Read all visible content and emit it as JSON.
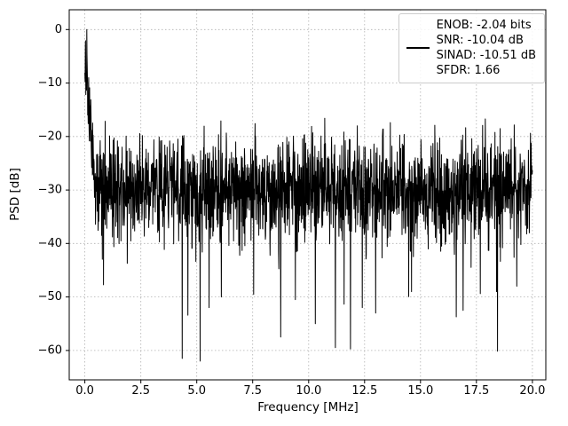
{
  "chart_data": {
    "type": "line",
    "title": "",
    "xlabel": "Frequency [MHz]",
    "ylabel": "PSD [dB]",
    "xlim": [
      -0.7,
      20.6
    ],
    "ylim": [
      -65.5,
      3.7
    ],
    "xticks": [
      0,
      2.5,
      5,
      7.5,
      10,
      12.5,
      15,
      17.5,
      20
    ],
    "xtick_labels": [
      "0.0",
      "2.5",
      "5.0",
      "7.5",
      "10.0",
      "12.5",
      "15.0",
      "17.5",
      "20.0"
    ],
    "yticks": [
      0,
      -10,
      -20,
      -30,
      -40,
      -50,
      -60
    ],
    "ytick_labels": [
      "0",
      "−10",
      "−20",
      "−30",
      "−40",
      "−50",
      "−60"
    ],
    "grid": true,
    "grid_color": "#b0b0b0",
    "line_color": "#000000",
    "legend": {
      "position": "upper right",
      "entries": [
        "ENOB: -2.04 bits",
        "SNR: -10.04 dB",
        "SINAD: -10.51 dB",
        "SFDR: 1.66"
      ]
    },
    "stats": {
      "enob_bits": -2.04,
      "snr_db": -10.04,
      "sinad_db": -10.51,
      "sfdr": 1.66
    },
    "series": [
      {
        "name": "psd",
        "color": "#000000",
        "x_range": [
          0,
          20
        ],
        "n_points": 1900,
        "seed": 11,
        "peak": {
          "x": 0.08,
          "y_db": 0
        },
        "main_lobe_width_mhz": 0.45,
        "noise_floor_db": -30,
        "noise_std_db": 5,
        "upper_env_db": -16.5,
        "deep_dip_prob": 0.006,
        "deep_dip_min_db": -62,
        "notches": [
          {
            "x": 4.35,
            "y": -61.5
          },
          {
            "x": 5.15,
            "y": -62.0
          },
          {
            "x": 5.55,
            "y": -52.0
          },
          {
            "x": 6.1,
            "y": -50.0
          },
          {
            "x": 8.75,
            "y": -57.5
          },
          {
            "x": 9.4,
            "y": -50.5
          },
          {
            "x": 10.3,
            "y": -55.0
          },
          {
            "x": 11.2,
            "y": -59.5
          },
          {
            "x": 12.4,
            "y": -52.0
          },
          {
            "x": 13.0,
            "y": -53.0
          },
          {
            "x": 14.6,
            "y": -49.0
          },
          {
            "x": 16.9,
            "y": -52.5
          },
          {
            "x": 18.4,
            "y": -49.0
          },
          {
            "x": 19.3,
            "y": -48.0
          }
        ]
      }
    ]
  }
}
